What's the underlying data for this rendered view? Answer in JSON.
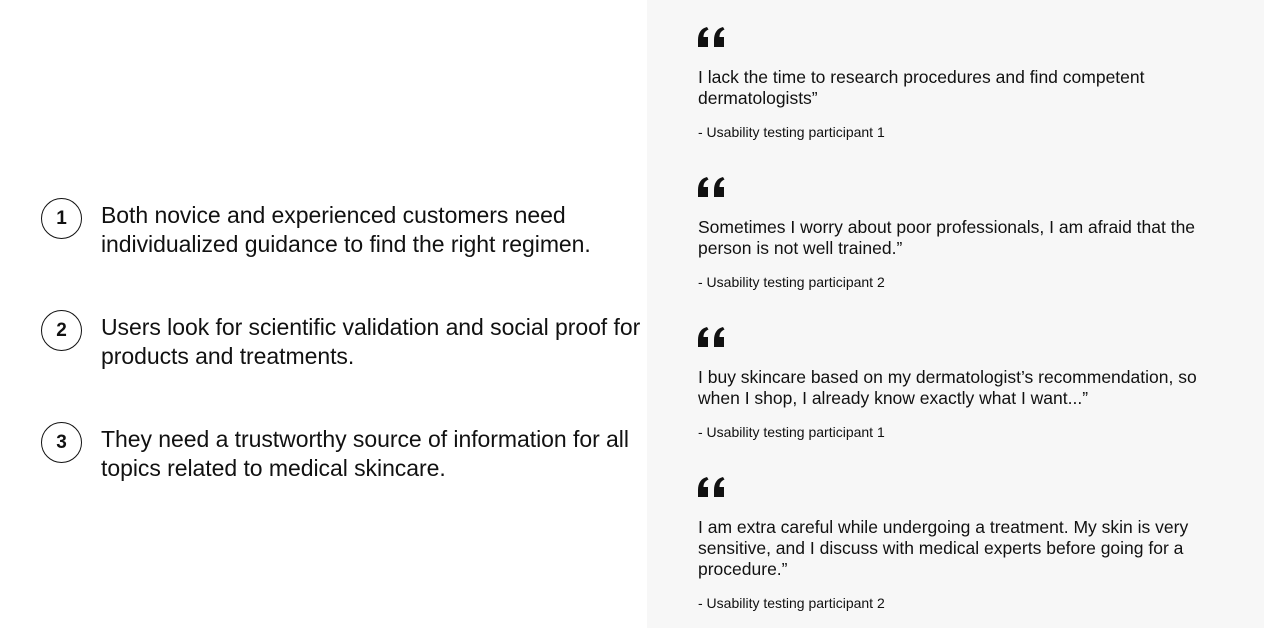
{
  "insights": [
    {
      "number": "1",
      "text": "Both novice and experienced customers need individualized guidance to find the right regimen."
    },
    {
      "number": "2",
      "text": "Users look for scientific validation and social proof for products and treatments."
    },
    {
      "number": "3",
      "text": "They need a trustworthy source of information for all topics related to medical skincare."
    }
  ],
  "quotes": [
    {
      "icon": "quote-mark-icon",
      "text": "I lack the time to research procedures and find competent dermatologists”",
      "attribution": "- Usability testing participant 1"
    },
    {
      "icon": "quote-mark-icon",
      "text": "Sometimes I worry about poor professionals, I am afraid that the person is not well trained.”",
      "attribution": "- Usability testing participant 2"
    },
    {
      "icon": "quote-mark-icon",
      "text": "I buy skincare based on my dermatologist’s recommendation, so when I shop, I already know exactly what I want...”",
      "attribution": "- Usability testing participant 1"
    },
    {
      "icon": "quote-mark-icon",
      "text": "I am extra careful while undergoing a treatment. My skin is very sensitive, and I discuss with medical experts before going for a procedure.”",
      "attribution": "- Usability testing participant 2"
    }
  ]
}
